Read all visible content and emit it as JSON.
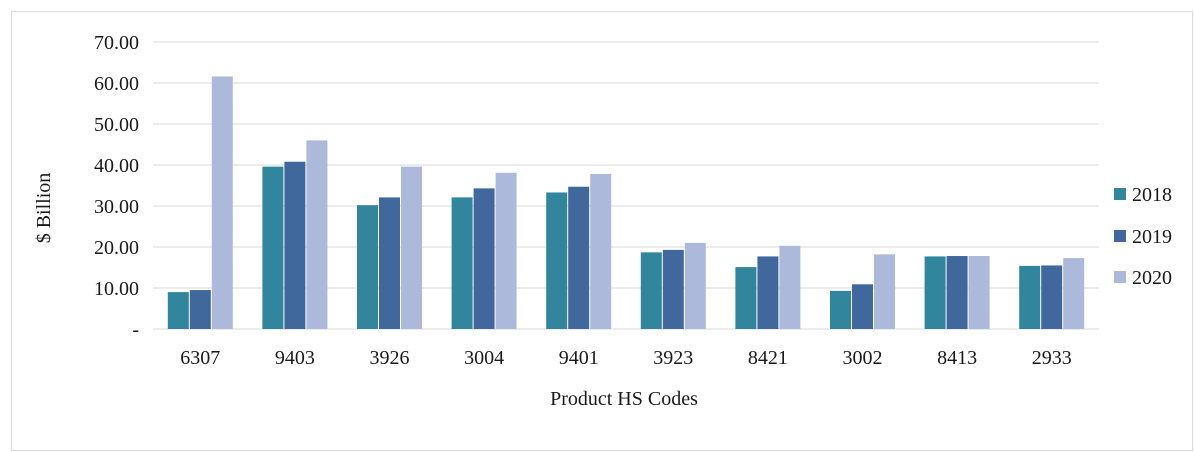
{
  "chart_data": {
    "type": "bar",
    "title": "",
    "xlabel": "Product HS Codes",
    "ylabel": "$ Billion",
    "ylim": [
      0,
      70
    ],
    "yticks": [
      0,
      10,
      20,
      30,
      40,
      50,
      60,
      70
    ],
    "ytick_labels": [
      "-",
      "10.00",
      "20.00",
      "30.00",
      "40.00",
      "50.00",
      "60.00",
      "70.00"
    ],
    "grid": true,
    "legend_position": "right",
    "categories": [
      "6307",
      "9403",
      "3926",
      "3004",
      "9401",
      "3923",
      "8421",
      "3002",
      "8413",
      "2933"
    ],
    "series": [
      {
        "name": "2018",
        "color": "#31859c",
        "values": [
          9.0,
          39.6,
          30.2,
          32.1,
          33.3,
          18.7,
          15.1,
          9.3,
          17.7,
          15.4
        ]
      },
      {
        "name": "2019",
        "color": "#41689c",
        "values": [
          9.5,
          40.8,
          32.1,
          34.3,
          34.7,
          19.3,
          17.7,
          10.9,
          17.8,
          15.5
        ]
      },
      {
        "name": "2020",
        "color": "#adb9da",
        "values": [
          61.6,
          46.0,
          39.6,
          38.1,
          37.8,
          21.0,
          20.3,
          18.2,
          17.8,
          17.3
        ]
      }
    ]
  }
}
